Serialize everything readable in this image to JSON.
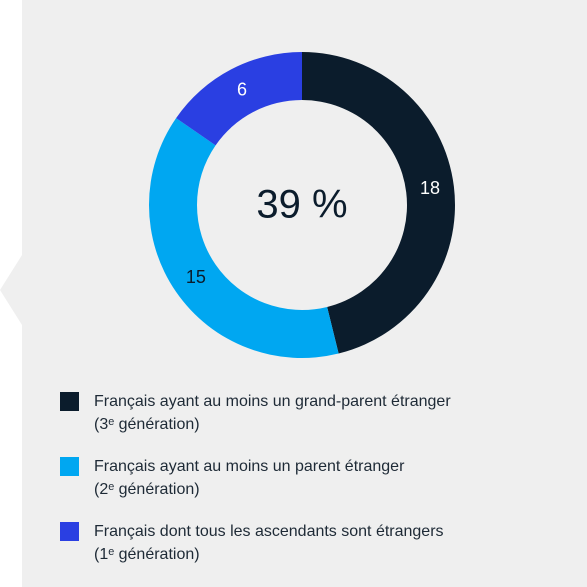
{
  "chart_data": {
    "type": "pie",
    "center_label": "39 %",
    "categories": [
      "Français ayant au moins un grand-parent étranger\n(3ᵉ génération)",
      "Français ayant au moins un parent étranger\n(2ᵉ génération)",
      "Français dont tous les ascendants sont étrangers\n(1ᵉ génération)"
    ],
    "values": [
      18,
      15,
      6
    ],
    "colors": [
      "#0b1c2c",
      "#00a7f1",
      "#2a3fe2"
    ],
    "label_colors": [
      "#ffffff",
      "#0b1c2c",
      "#ffffff"
    ]
  }
}
